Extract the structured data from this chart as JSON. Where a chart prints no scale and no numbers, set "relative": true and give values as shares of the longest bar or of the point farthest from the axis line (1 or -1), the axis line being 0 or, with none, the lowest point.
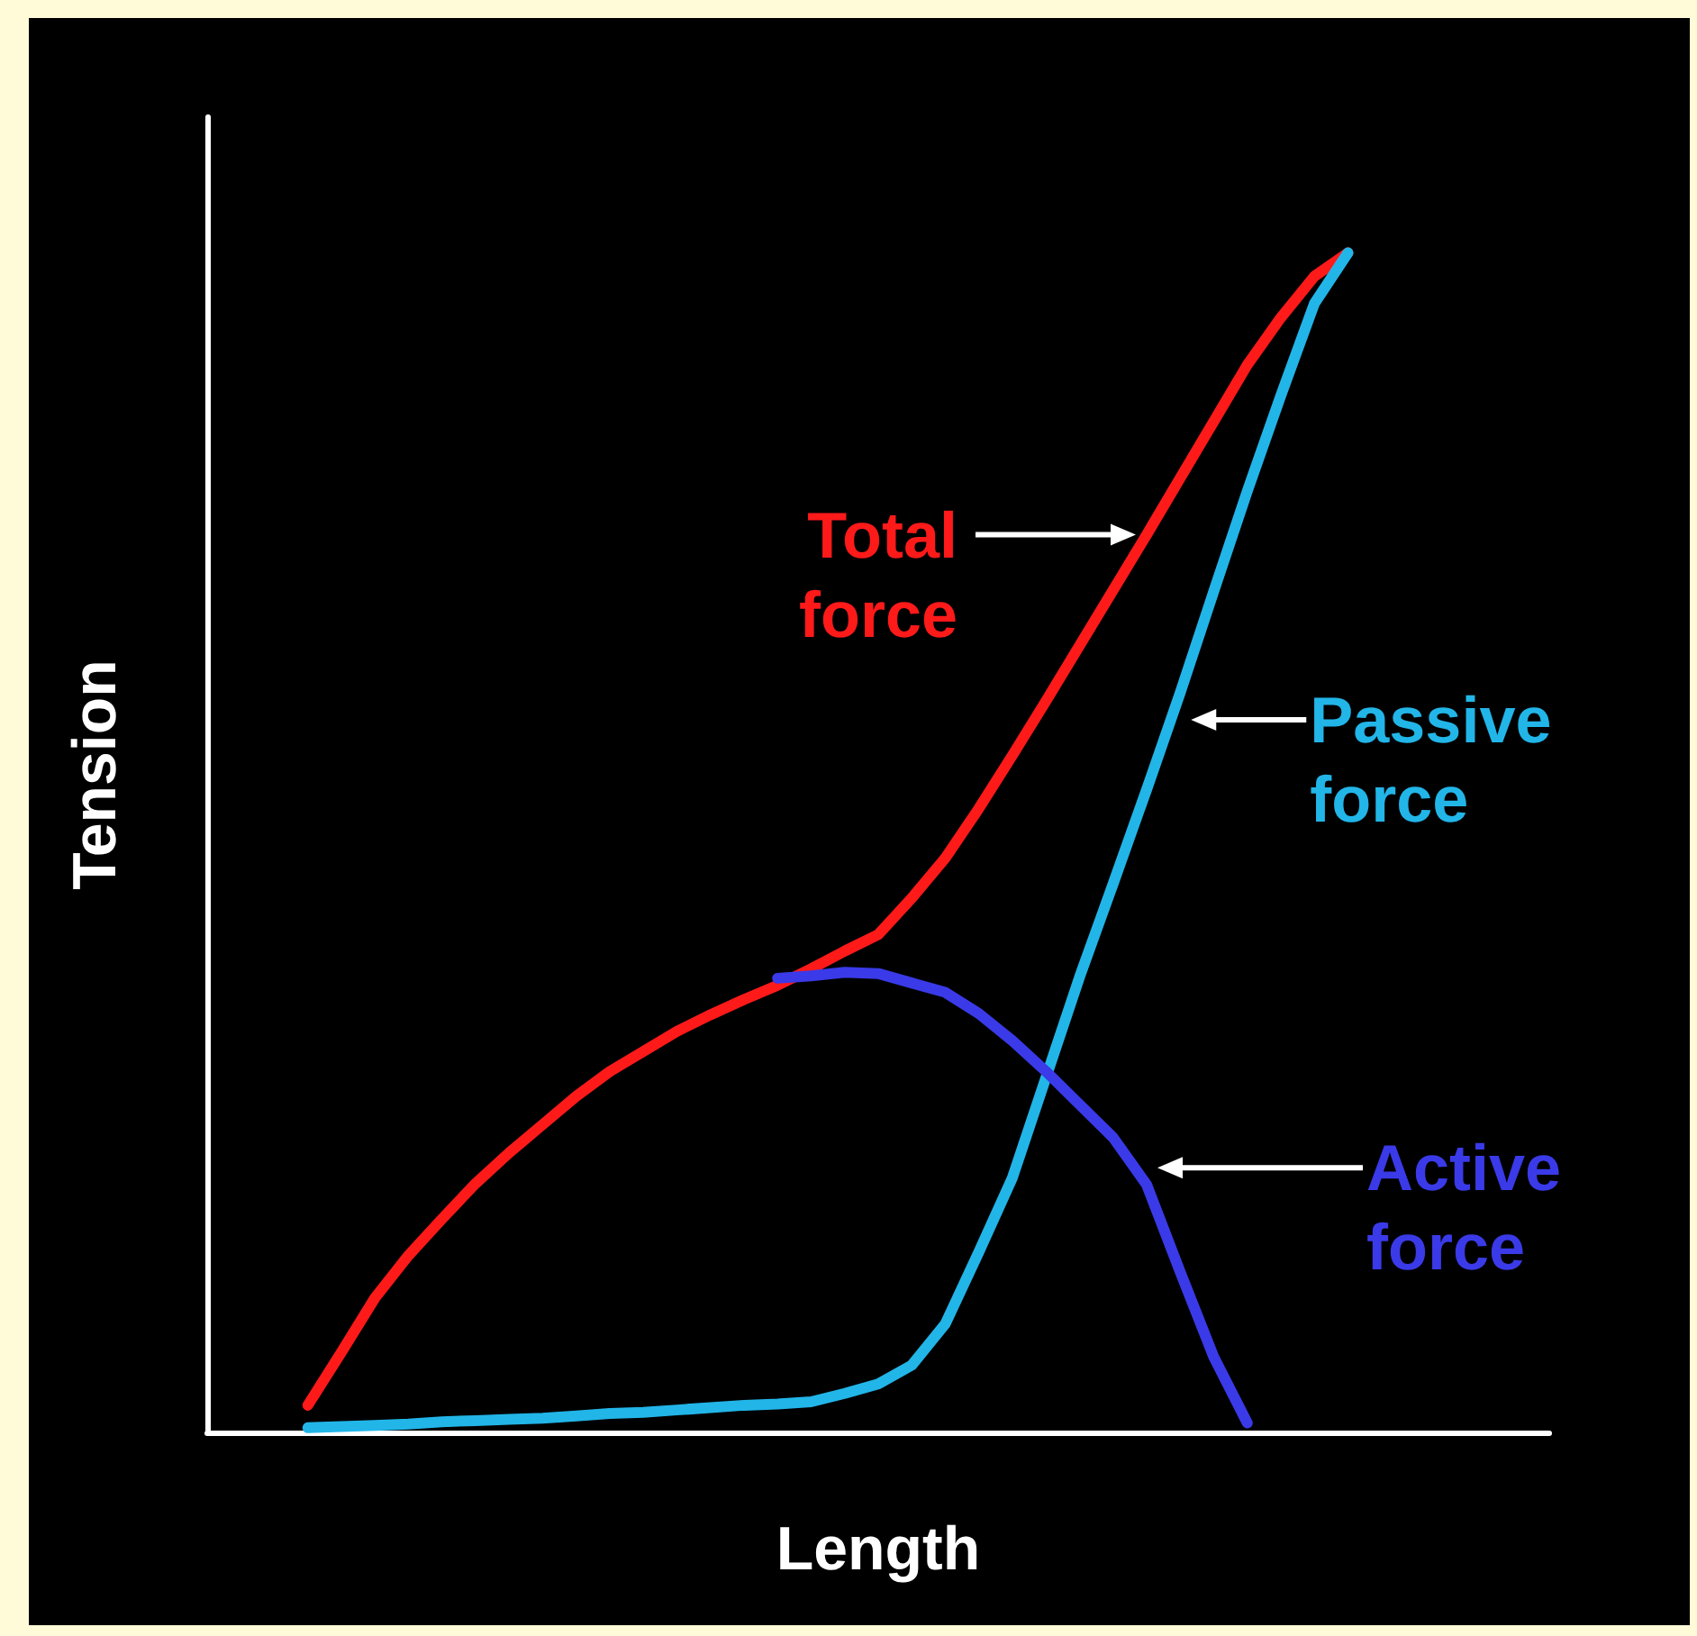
{
  "chart_data": {
    "type": "line",
    "xlabel": "Length",
    "ylabel": "Tension",
    "relative": true,
    "grid": false,
    "legend": "right",
    "marker": "none",
    "line_style": "solid",
    "categories": [
      null,
      null,
      null,
      null,
      null,
      null,
      null,
      null,
      null,
      null,
      null,
      null,
      null,
      null,
      null,
      null,
      null,
      null,
      null,
      null,
      null,
      null,
      null,
      null,
      null,
      null,
      null,
      null,
      null,
      null,
      null,
      null,
      null,
      null,
      null,
      null,
      null,
      null,
      null,
      null,
      null
    ],
    "series": [
      {
        "name": "Total force",
        "color": "#ff1a1a",
        "values": [
          null,
          null,
          null,
          0.023,
          0.068,
          0.114,
          0.15,
          0.181,
          0.211,
          0.237,
          0.261,
          0.285,
          0.306,
          0.323,
          0.34,
          0.354,
          0.367,
          0.379,
          0.393,
          0.408,
          0.422,
          0.453,
          0.487,
          0.529,
          0.574,
          0.62,
          0.667,
          0.714,
          0.761,
          0.809,
          0.857,
          0.905,
          0.945,
          0.98,
          1,
          null,
          null,
          null,
          null,
          null,
          null
        ]
      },
      {
        "name": "Passive force",
        "color": "#22b5e8",
        "values": [
          null,
          null,
          null,
          0.004,
          0.005,
          0.006,
          0.007,
          0.009,
          0.01,
          0.011,
          0.012,
          0.014,
          0.016,
          0.017,
          0.019,
          0.021,
          0.023,
          0.024,
          0.026,
          0.033,
          0.041,
          0.057,
          0.092,
          0.153,
          0.216,
          0.301,
          0.386,
          0.465,
          0.545,
          0.627,
          0.713,
          0.798,
          0.879,
          0.957,
          1,
          null,
          null,
          null,
          null,
          null,
          null
        ]
      },
      {
        "name": "Active force",
        "color": "#3a3ae8",
        "values": [
          null,
          null,
          null,
          null,
          null,
          null,
          null,
          null,
          null,
          null,
          null,
          null,
          null,
          null,
          null,
          null,
          null,
          0.385,
          0.387,
          0.39,
          0.389,
          0.381,
          0.373,
          0.355,
          0.332,
          0.306,
          0.278,
          0.25,
          0.21,
          0.136,
          0.064,
          0.008,
          null,
          null,
          null,
          null,
          null,
          null,
          null,
          null,
          null
        ]
      }
    ]
  }
}
